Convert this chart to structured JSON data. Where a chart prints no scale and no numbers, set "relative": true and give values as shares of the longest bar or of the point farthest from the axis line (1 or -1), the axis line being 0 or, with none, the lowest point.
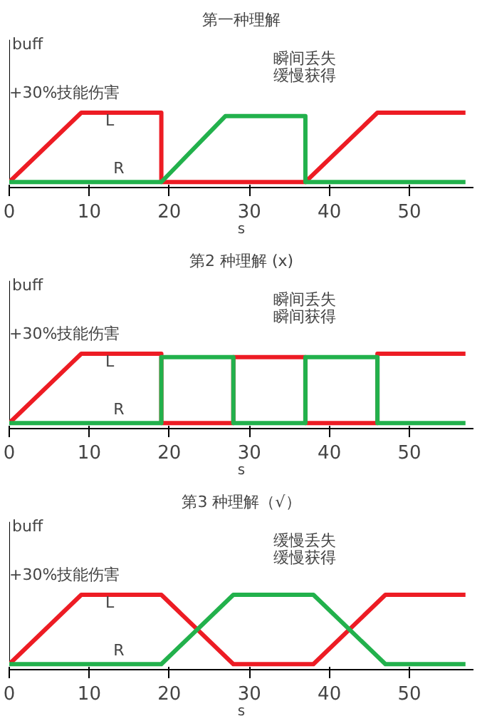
{
  "chart_data": [
    {
      "type": "line",
      "title": "第一种理解",
      "xlabel": "s",
      "ylabel": "buff",
      "relative": true,
      "xlim": [
        0,
        58
      ],
      "xticks": [
        0,
        10,
        20,
        30,
        40,
        50
      ],
      "legend": false,
      "grid": false,
      "annotations": [
        "+30%技能伤害",
        "瞬间丢失",
        "缓慢获得"
      ],
      "series": [
        {
          "name": "L",
          "color": "#ed1c24",
          "x": [
            0,
            9,
            19,
            19,
            37,
            46,
            57
          ],
          "values": [
            0,
            1,
            1,
            0,
            0,
            1,
            1
          ]
        },
        {
          "name": "R",
          "color": "#22b14c",
          "x": [
            0,
            19,
            27,
            37,
            37,
            57
          ],
          "values": [
            0,
            0,
            0.95,
            0.95,
            0,
            0
          ]
        }
      ]
    },
    {
      "type": "line",
      "title": "第2 种理解 (x)",
      "xlabel": "s",
      "ylabel": "buff",
      "relative": true,
      "xlim": [
        0,
        58
      ],
      "xticks": [
        0,
        10,
        20,
        30,
        40,
        50
      ],
      "legend": false,
      "grid": false,
      "annotations": [
        "+30%技能伤害",
        "瞬间丢失",
        "瞬间获得"
      ],
      "series": [
        {
          "name": "L",
          "color": "#ed1c24",
          "x": [
            0,
            9,
            19,
            19,
            28,
            28,
            37,
            37,
            46,
            46,
            57
          ],
          "values": [
            0,
            1,
            1,
            0,
            0,
            0.95,
            0.95,
            0,
            0,
            1,
            1
          ]
        },
        {
          "name": "R",
          "color": "#22b14c",
          "x": [
            0,
            19,
            19,
            28,
            28,
            37,
            37,
            46,
            46,
            57
          ],
          "values": [
            0,
            0,
            0.95,
            0.95,
            0,
            0,
            0.95,
            0.95,
            0,
            0
          ]
        }
      ]
    },
    {
      "type": "line",
      "title": "第3 种理解（√）",
      "xlabel": "s",
      "ylabel": "buff",
      "relative": true,
      "xlim": [
        0,
        58
      ],
      "xticks": [
        0,
        10,
        20,
        30,
        40,
        50
      ],
      "legend": false,
      "grid": false,
      "annotations": [
        "+30%技能伤害",
        "缓慢丢失",
        "缓慢获得"
      ],
      "series": [
        {
          "name": "L",
          "color": "#ed1c24",
          "x": [
            0,
            9,
            19,
            28,
            38,
            47,
            57
          ],
          "values": [
            0,
            1,
            1,
            0,
            0,
            1,
            1
          ]
        },
        {
          "name": "R",
          "color": "#22b14c",
          "x": [
            0,
            19,
            28,
            38,
            47,
            57
          ],
          "values": [
            0,
            0,
            1,
            1,
            0,
            0
          ]
        }
      ]
    }
  ]
}
